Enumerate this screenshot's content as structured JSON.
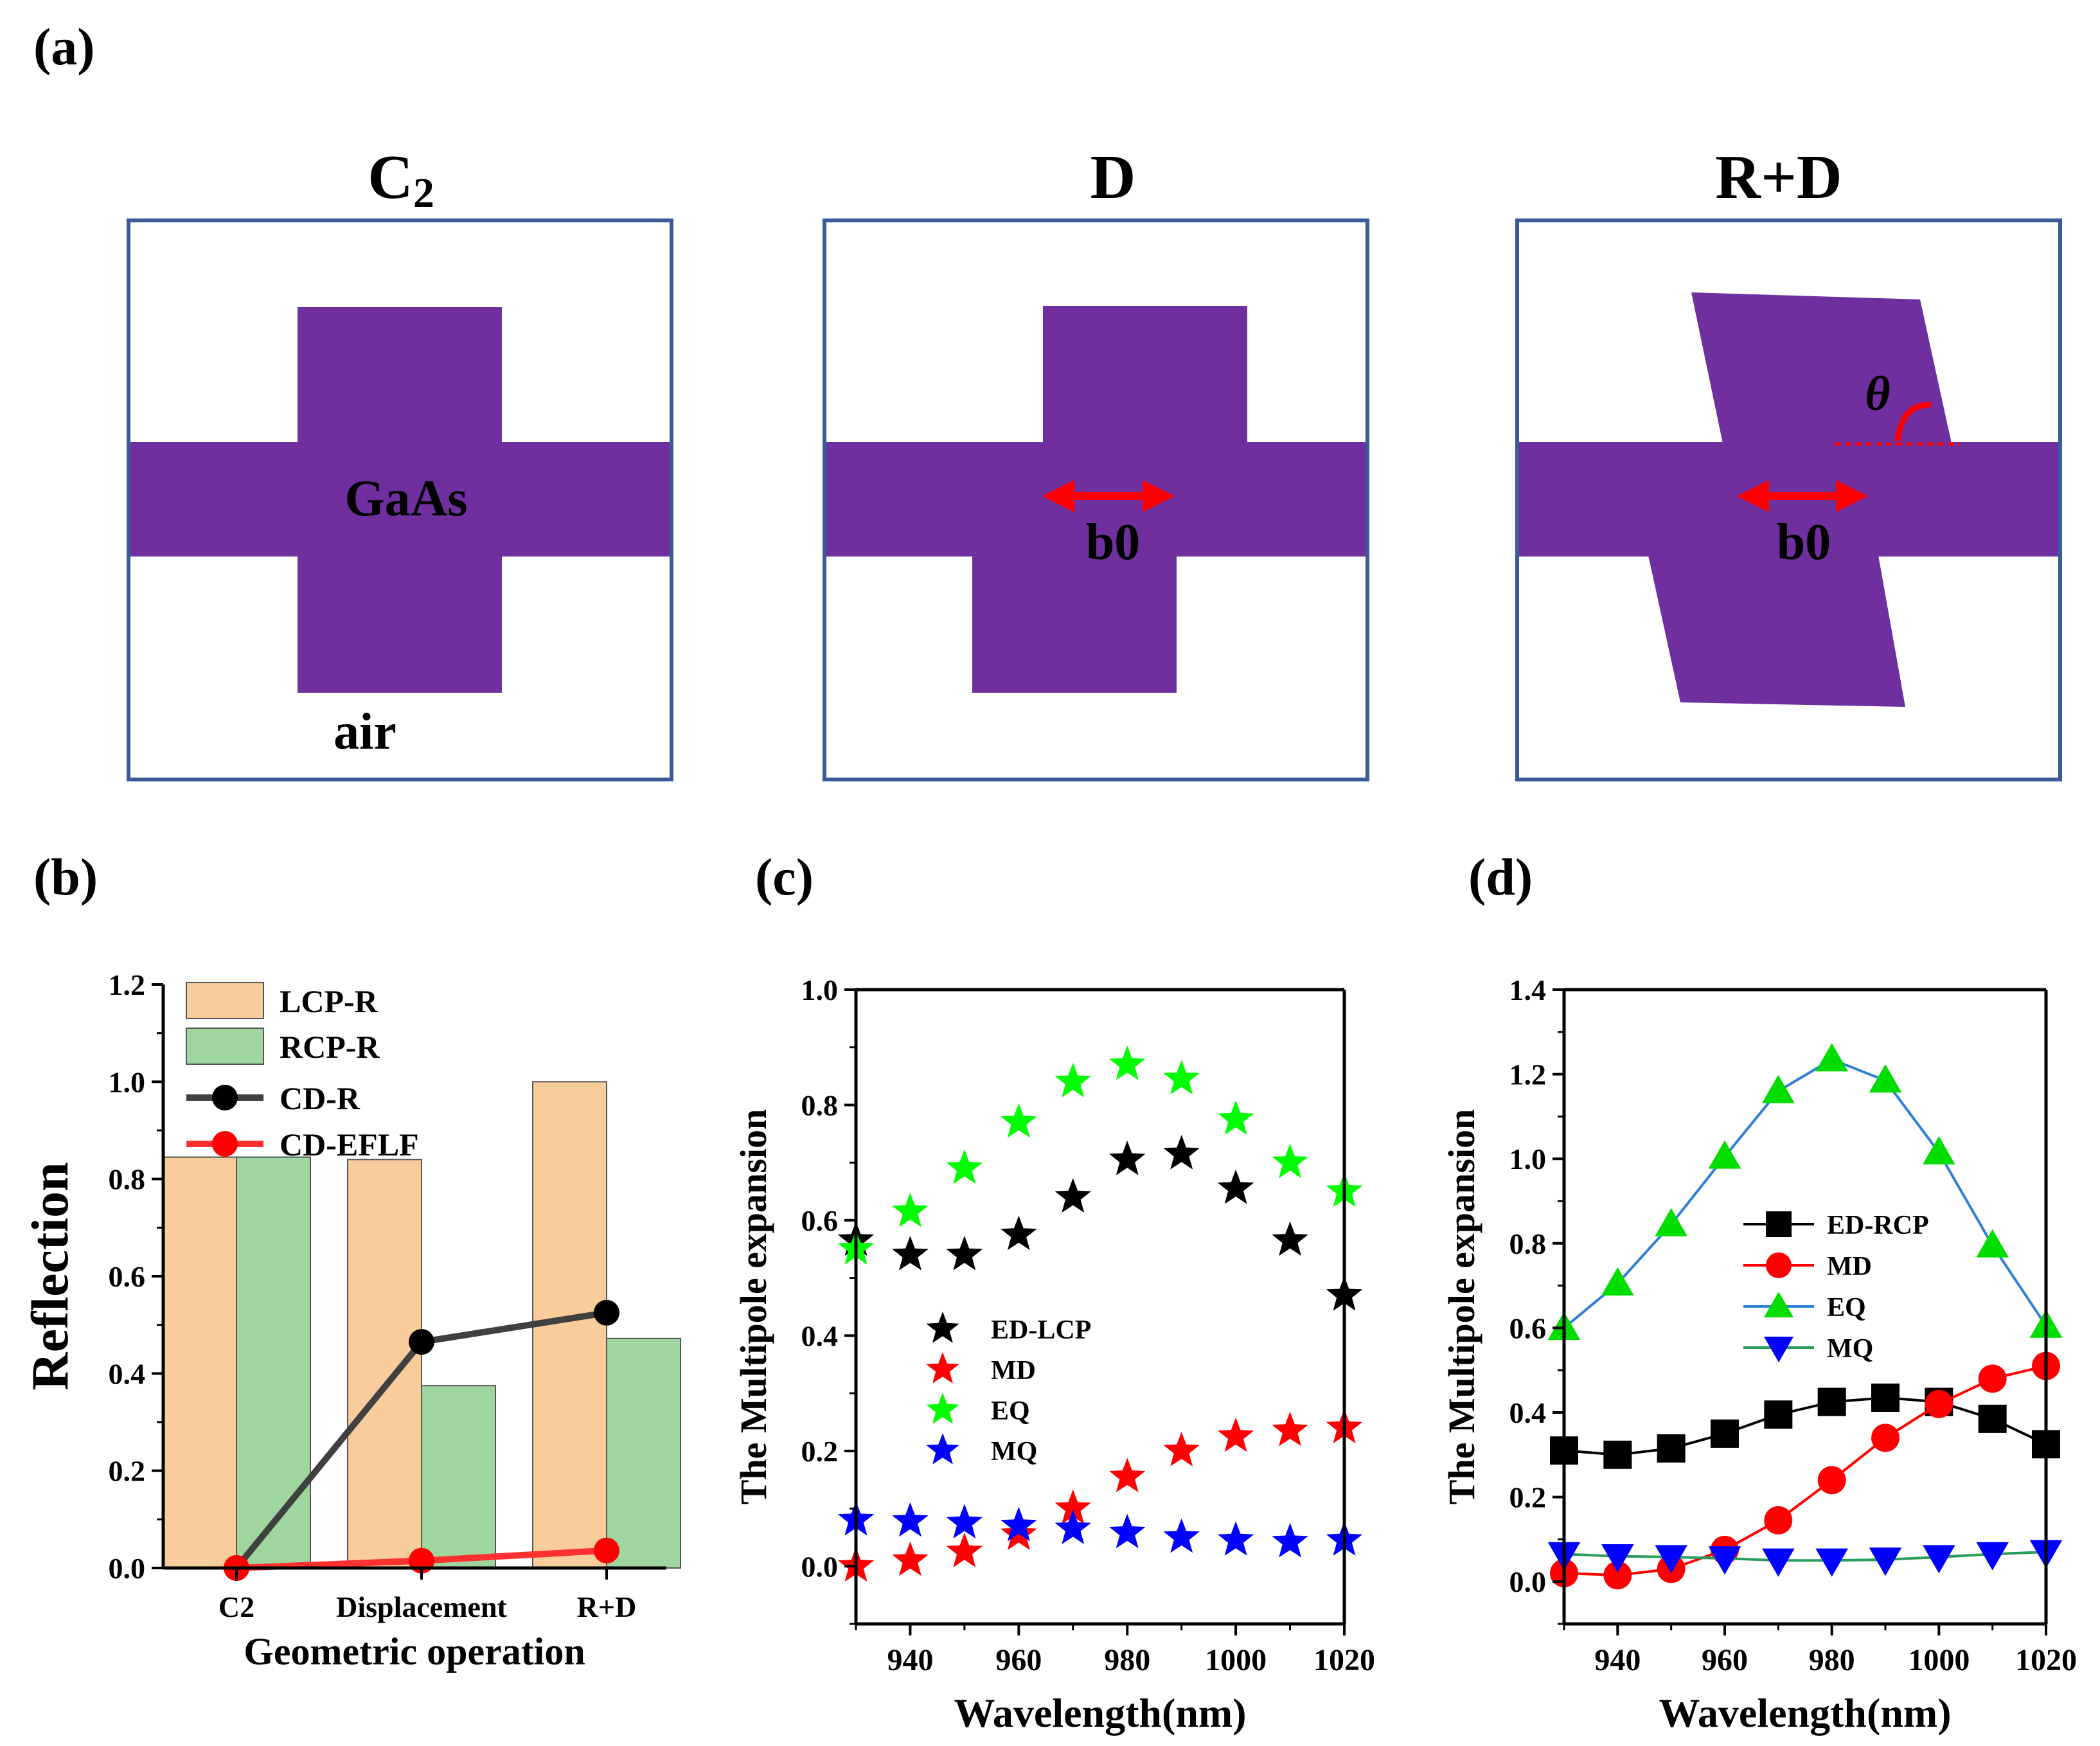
{
  "panel_a": {
    "label": "(a)",
    "cells": [
      {
        "title": "C",
        "title_sub": "2",
        "material_label": "GaAs",
        "background_label": "air"
      },
      {
        "title": "D",
        "shift_label": "b0"
      },
      {
        "title": "R+D",
        "shift_label": "b0",
        "angle_label": "θ"
      }
    ],
    "colors": {
      "frame": "#3b5b97",
      "cross": "#6f2f9f",
      "arrow": "#ff0000"
    }
  },
  "panel_labels": {
    "b": "(b)",
    "c": "(c)",
    "d": "(d)"
  },
  "chart_data": [
    {
      "id": "b",
      "type": "bar",
      "categories": [
        "C2",
        "Displacement",
        "R+D"
      ],
      "series": [
        {
          "name": "LCP-R",
          "kind": "bar",
          "color": "#f9cc9c",
          "values": [
            0.845,
            0.84,
            1.0
          ]
        },
        {
          "name": "RCP-R",
          "kind": "bar",
          "color": "#9fd6a0",
          "values": [
            0.845,
            0.375,
            0.472
          ]
        },
        {
          "name": "CD-R",
          "kind": "line",
          "color": "#404040",
          "marker": "circle",
          "marker_color": "#000000",
          "values": [
            0.0,
            0.465,
            0.525
          ]
        },
        {
          "name": "CD-EFLF",
          "kind": "line",
          "color": "#ff3030",
          "marker": "circle",
          "marker_color": "#ff0000",
          "values": [
            0.0,
            0.015,
            0.036
          ]
        }
      ],
      "xlabel": "Geometric operation",
      "ylabel": "Reflection",
      "ylim": [
        0,
        1.2
      ],
      "yticks": [
        "0.0",
        "0.2",
        "0.4",
        "0.6",
        "0.8",
        "1.0",
        "1.2"
      ],
      "legend": "top-left"
    },
    {
      "id": "c",
      "type": "scatter",
      "x": [
        930,
        940,
        950,
        960,
        970,
        980,
        990,
        1000,
        1010,
        1020
      ],
      "series": [
        {
          "name": "ED-LCP",
          "marker": "star",
          "color": "#000000",
          "values": [
            0.565,
            0.54,
            0.54,
            0.575,
            0.64,
            0.705,
            0.715,
            0.655,
            0.565,
            0.47
          ]
        },
        {
          "name": "MD",
          "marker": "star",
          "color": "#ff0000",
          "values": [
            0.0,
            0.01,
            0.025,
            0.055,
            0.1,
            0.155,
            0.2,
            0.225,
            0.235,
            0.24
          ]
        },
        {
          "name": "EQ",
          "marker": "star",
          "color": "#00ff00",
          "values": [
            0.55,
            0.615,
            0.69,
            0.77,
            0.84,
            0.87,
            0.845,
            0.775,
            0.7,
            0.65
          ]
        },
        {
          "name": "MQ",
          "marker": "star",
          "color": "#0000ff",
          "values": [
            0.08,
            0.078,
            0.075,
            0.07,
            0.065,
            0.058,
            0.05,
            0.045,
            0.042,
            0.045
          ]
        }
      ],
      "xlabel": "Wavelength(nm)",
      "ylabel": "The Multipole expansion",
      "xlim": [
        930,
        1020
      ],
      "ylim": [
        -0.1,
        1.0
      ],
      "xticks": [
        "940",
        "960",
        "980",
        "1000",
        "1020"
      ],
      "yticks": [
        "0.0",
        "0.2",
        "0.4",
        "0.6",
        "0.8",
        "1.0"
      ],
      "legend": "center-left"
    },
    {
      "id": "d",
      "type": "line",
      "x": [
        930,
        940,
        950,
        960,
        970,
        980,
        990,
        1000,
        1010,
        1020
      ],
      "series": [
        {
          "name": "ED-RCP",
          "marker": "square",
          "color": "#000000",
          "values": [
            0.31,
            0.3,
            0.315,
            0.35,
            0.395,
            0.425,
            0.435,
            0.425,
            0.385,
            0.325
          ]
        },
        {
          "name": "MD",
          "marker": "circle",
          "color": "#ff0000",
          "values": [
            0.02,
            0.015,
            0.03,
            0.075,
            0.145,
            0.24,
            0.34,
            0.42,
            0.48,
            0.51
          ]
        },
        {
          "name": "EQ",
          "marker": "triangle-up",
          "color": "#00dd00",
          "line_color": "#2f7fd6",
          "values": [
            0.6,
            0.705,
            0.845,
            1.005,
            1.16,
            1.235,
            1.185,
            1.015,
            0.795,
            0.605
          ]
        },
        {
          "name": "MQ",
          "marker": "triangle-down",
          "color": "#0000ff",
          "line_color": "#2a9d5c",
          "values": [
            0.065,
            0.06,
            0.058,
            0.055,
            0.05,
            0.05,
            0.052,
            0.058,
            0.065,
            0.07
          ]
        }
      ],
      "xlabel": "Wavelength(nm)",
      "ylabel": "The Multipole expansion",
      "xlim": [
        930,
        1020
      ],
      "ylim": [
        -0.1,
        1.4
      ],
      "xticks": [
        "940",
        "960",
        "980",
        "1000",
        "1020"
      ],
      "yticks": [
        "0.0",
        "0.2",
        "0.4",
        "0.6",
        "0.8",
        "1.0",
        "1.2",
        "1.4"
      ],
      "legend": "center-left"
    }
  ]
}
